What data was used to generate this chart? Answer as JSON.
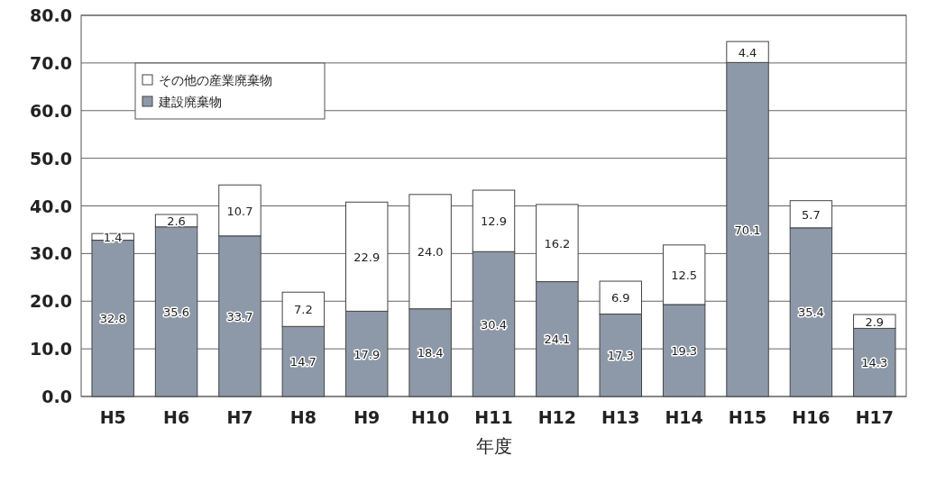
{
  "chart_data": {
    "type": "bar",
    "stacked": true,
    "xlabel": "年度",
    "categories": [
      "H5",
      "H6",
      "H7",
      "H8",
      "H9",
      "H10",
      "H11",
      "H12",
      "H13",
      "H14",
      "H15",
      "H16",
      "H17"
    ],
    "ylim": [
      0,
      80
    ],
    "yticks": [
      {
        "value": 0,
        "label": "0.0"
      },
      {
        "value": 10,
        "label": "10.0"
      },
      {
        "value": 20,
        "label": "20.0"
      },
      {
        "value": 30,
        "label": "30.0"
      },
      {
        "value": 40,
        "label": "40.0"
      },
      {
        "value": 50,
        "label": "50.0"
      },
      {
        "value": 60,
        "label": "60.0"
      },
      {
        "value": 70,
        "label": "70.0"
      },
      {
        "value": 80,
        "label": "80.0"
      }
    ],
    "grid": "y",
    "legend": "top left",
    "series": [
      {
        "name": "建設廃棄物",
        "color": "#8d99a8",
        "values": [
          32.8,
          35.6,
          33.7,
          14.7,
          17.9,
          18.4,
          30.4,
          24.1,
          17.3,
          19.3,
          70.1,
          35.4,
          14.3
        ],
        "value_labels": [
          "32.8",
          "35.6",
          "33.7",
          "14.7",
          "17.9",
          "18.4",
          "30.4",
          "24.1",
          "17.3",
          "19.3",
          "70.1",
          "35.4",
          "14.3"
        ]
      },
      {
        "name": "その他の産業廃棄物",
        "color": "#ffffff",
        "values": [
          1.4,
          2.6,
          10.7,
          7.2,
          22.9,
          24.0,
          12.9,
          16.2,
          6.9,
          12.5,
          4.4,
          5.7,
          2.9
        ],
        "value_labels": [
          "1.4",
          "2.6",
          "10.7",
          "7.2",
          "22.9",
          "24.0",
          "12.9",
          "16.2",
          "6.9",
          "12.5",
          "4.4",
          "5.7",
          "2.9"
        ]
      }
    ]
  }
}
